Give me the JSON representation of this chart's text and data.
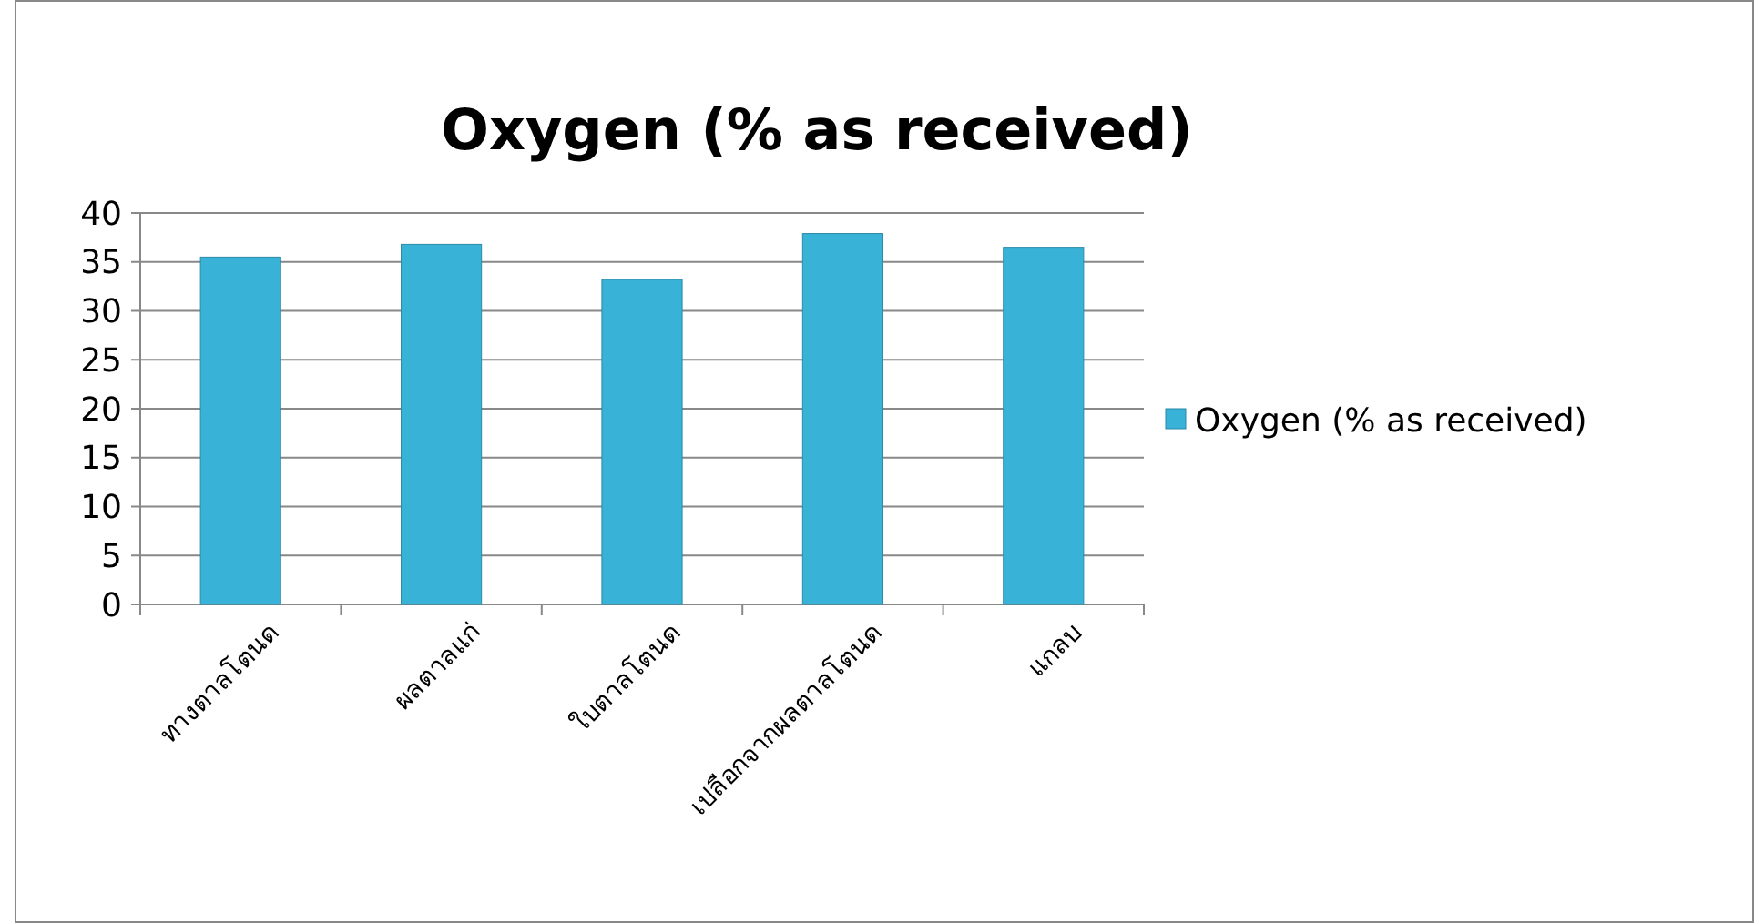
{
  "chart_data": {
    "type": "bar",
    "title": "Oxygen (% as received)",
    "categories": [
      "ทางตาลโตนด",
      "ผลตาลแก่",
      "ใบตาลโตนด",
      "เปลือกจากผลตาลโตนด",
      "แกลบ"
    ],
    "series": [
      {
        "name": "Oxygen (% as received)",
        "color": "#38b2d6",
        "values": [
          35.5,
          36.8,
          33.2,
          37.9,
          36.5
        ]
      }
    ],
    "ylim": [
      0,
      40
    ],
    "yticks": [
      0,
      5,
      10,
      15,
      20,
      25,
      30,
      35,
      40
    ],
    "grid": "y",
    "legend": "right"
  }
}
